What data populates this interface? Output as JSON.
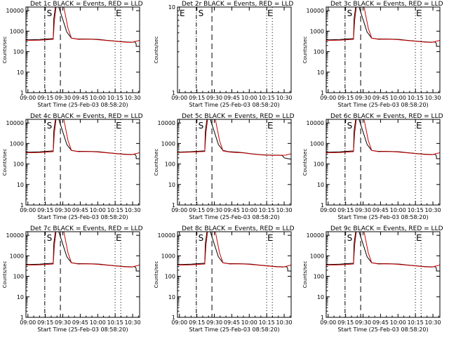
{
  "figure": {
    "xlabel": "Start Time (25-Feb-03 08:58:20)",
    "ylabel": "Counts/sec"
  },
  "chart_data": [
    {
      "type": "line",
      "title": "Det 1c BLACK = Events, RED = LLD",
      "has_data": true,
      "curve": "std",
      "markers": [
        "S",
        "E"
      ],
      "x_ticklabels": [
        "09:00",
        "09:15",
        "09:30",
        "09:45",
        "10:00",
        "10:15",
        "10:30"
      ],
      "y_ticklabels": [
        "1",
        "10",
        "100",
        "1000",
        "10000"
      ],
      "ylim": [
        1,
        15000
      ],
      "xlim": [
        "08:58:20",
        "10:36:00"
      ],
      "series": [
        {
          "name": "BLACK = Events",
          "color": "#000000"
        },
        {
          "name": "RED = LLD",
          "color": "#cc0000"
        }
      ]
    },
    {
      "type": "line",
      "title": "Det 2r BLACK = Events, RED = LLD",
      "has_data": false,
      "curve": "none",
      "markers": [
        "E",
        "S",
        "E"
      ],
      "x_ticklabels": [
        "09:00",
        "09:15",
        "09:30",
        "09:45",
        "10:00",
        "10:15",
        "10:30"
      ],
      "y_ticklabels": [
        "1",
        "10"
      ],
      "ylim": [
        1,
        10
      ],
      "xlim": [
        "08:58:20",
        "10:36:00"
      ],
      "series": [
        {
          "name": "BLACK = Events",
          "color": "#000000"
        },
        {
          "name": "RED = LLD",
          "color": "#cc0000"
        }
      ]
    },
    {
      "type": "line",
      "title": "Det 3c BLACK = Events, RED = LLD",
      "has_data": true,
      "curve": "std",
      "markers": [
        "S",
        "E"
      ],
      "x_ticklabels": [
        "09:00",
        "09:15",
        "09:30",
        "09:45",
        "10:00",
        "10:15",
        "10:30"
      ],
      "y_ticklabels": [
        "1",
        "10",
        "100",
        "1000",
        "10000"
      ],
      "ylim": [
        1,
        15000
      ],
      "xlim": [
        "08:58:20",
        "10:36:00"
      ],
      "series": [
        {
          "name": "BLACK = Events",
          "color": "#000000"
        },
        {
          "name": "RED = LLD",
          "color": "#cc0000"
        }
      ]
    },
    {
      "type": "line",
      "title": "Det 4c BLACK = Events, RED = LLD",
      "has_data": true,
      "curve": "std",
      "markers": [
        "S",
        "E"
      ],
      "x_ticklabels": [
        "09:00",
        "09:15",
        "09:30",
        "09:45",
        "10:00",
        "10:15",
        "10:30"
      ],
      "y_ticklabels": [
        "1",
        "10",
        "100",
        "1000",
        "10000"
      ],
      "ylim": [
        1,
        15000
      ],
      "xlim": [
        "08:58:20",
        "10:36:00"
      ],
      "series": [
        {
          "name": "BLACK = Events",
          "color": "#000000"
        },
        {
          "name": "RED = LLD",
          "color": "#cc0000"
        }
      ]
    },
    {
      "type": "line",
      "title": "Det 5c BLACK = Events, RED = LLD",
      "has_data": true,
      "curve": "low",
      "markers": [
        "S",
        "E"
      ],
      "x_ticklabels": [
        "09:00",
        "09:15",
        "09:30",
        "09:45",
        "10:00",
        "10:15",
        "10:30"
      ],
      "y_ticklabels": [
        "1",
        "10",
        "100",
        "1000",
        "10000"
      ],
      "ylim": [
        1,
        15000
      ],
      "xlim": [
        "08:58:20",
        "10:36:00"
      ],
      "series": [
        {
          "name": "BLACK = Events",
          "color": "#000000"
        },
        {
          "name": "RED = LLD",
          "color": "#cc0000"
        }
      ]
    },
    {
      "type": "line",
      "title": "Det 6c BLACK = Events, RED = LLD",
      "has_data": true,
      "curve": "std",
      "markers": [
        "S",
        "E"
      ],
      "x_ticklabels": [
        "09:00",
        "09:15",
        "09:30",
        "09:45",
        "10:00",
        "10:15",
        "10:30"
      ],
      "y_ticklabels": [
        "1",
        "10",
        "100",
        "1000",
        "10000"
      ],
      "ylim": [
        1,
        15000
      ],
      "xlim": [
        "08:58:20",
        "10:36:00"
      ],
      "series": [
        {
          "name": "BLACK = Events",
          "color": "#000000"
        },
        {
          "name": "RED = LLD",
          "color": "#cc0000"
        }
      ]
    },
    {
      "type": "line",
      "title": "Det 7c BLACK = Events, RED = LLD",
      "has_data": true,
      "curve": "std",
      "markers": [
        "S",
        "E"
      ],
      "x_ticklabels": [
        "09:00",
        "09:15",
        "09:30",
        "09:45",
        "10:00",
        "10:15",
        "10:30"
      ],
      "y_ticklabels": [
        "1",
        "10",
        "100",
        "1000",
        "10000"
      ],
      "ylim": [
        1,
        15000
      ],
      "xlim": [
        "08:58:20",
        "10:36:00"
      ],
      "series": [
        {
          "name": "BLACK = Events",
          "color": "#000000"
        },
        {
          "name": "RED = LLD",
          "color": "#cc0000"
        }
      ]
    },
    {
      "type": "line",
      "title": "Det 8c BLACK = Events, RED = LLD",
      "has_data": true,
      "curve": "std",
      "markers": [
        "S",
        "E"
      ],
      "x_ticklabels": [
        "09:00",
        "09:15",
        "09:30",
        "09:45",
        "10:00",
        "10:15",
        "10:30"
      ],
      "y_ticklabels": [
        "1",
        "10",
        "100",
        "1000",
        "10000"
      ],
      "ylim": [
        1,
        15000
      ],
      "xlim": [
        "08:58:20",
        "10:36:00"
      ],
      "series": [
        {
          "name": "BLACK = Events",
          "color": "#000000"
        },
        {
          "name": "RED = LLD",
          "color": "#cc0000"
        }
      ]
    },
    {
      "type": "line",
      "title": "Det 9c BLACK = Events, RED = LLD",
      "has_data": true,
      "curve": "std",
      "markers": [
        "S",
        "E"
      ],
      "x_ticklabels": [
        "09:00",
        "09:15",
        "09:30",
        "09:45",
        "10:00",
        "10:15",
        "10:30"
      ],
      "y_ticklabels": [
        "1",
        "10",
        "100",
        "1000",
        "10000"
      ],
      "ylim": [
        1,
        15000
      ],
      "xlim": [
        "08:58:20",
        "10:36:00"
      ],
      "series": [
        {
          "name": "BLACK = Events",
          "color": "#000000"
        },
        {
          "name": "RED = LLD",
          "color": "#cc0000"
        }
      ]
    }
  ]
}
